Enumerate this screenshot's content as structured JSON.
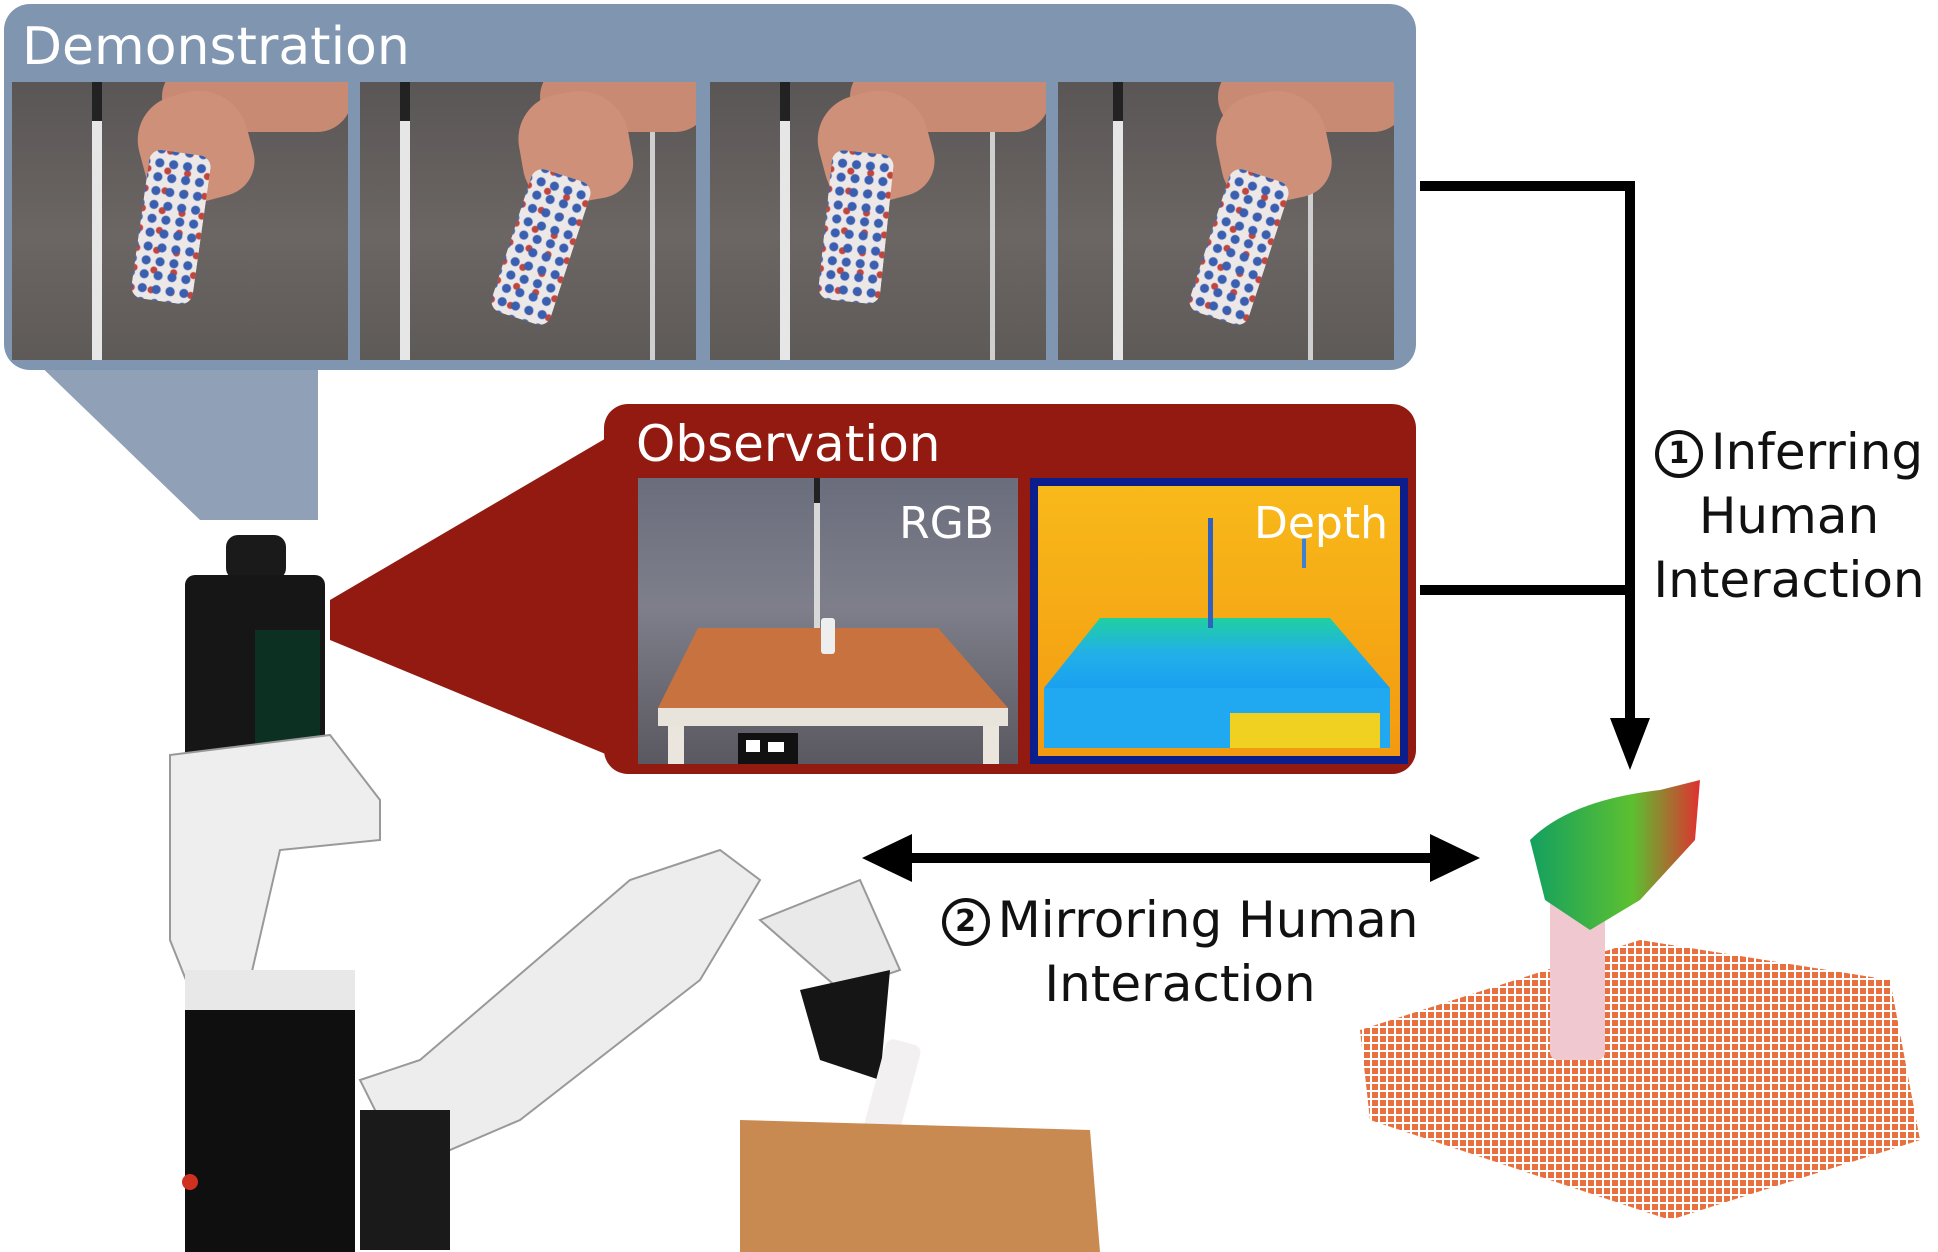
{
  "demonstration": {
    "title": "Demonstration",
    "frames": [
      "frame-1",
      "frame-2",
      "frame-3",
      "frame-4"
    ]
  },
  "observation": {
    "title": "Observation",
    "rgb_label": "RGB",
    "depth_label": "Depth"
  },
  "steps": {
    "inferring": {
      "number": "1",
      "line1": "Inferring",
      "line2": "Human",
      "line3": "Interaction"
    },
    "mirroring": {
      "number": "2",
      "line1": "Mirroring Human",
      "line2": "Interaction"
    }
  },
  "colors": {
    "demo_panel": "#7f95b0",
    "obs_panel": "#921a10",
    "arrow": "#000000"
  }
}
